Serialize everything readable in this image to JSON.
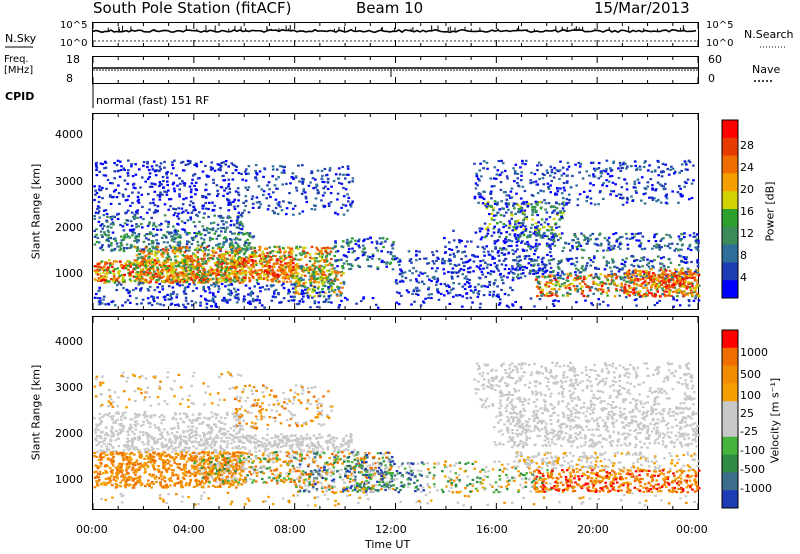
{
  "header": {
    "station": "South Pole Station (fitACF)",
    "beam": "Beam 10",
    "date": "15/Mar/2013"
  },
  "top_panels": {
    "nsky_label": "N.Sky",
    "nsearch_label": "N.Search",
    "nsky_ticks": [
      "10^5",
      "10^0"
    ],
    "freq_label": "Freq.",
    "freq_unit": "[MHz]",
    "freq_ticks": [
      "18",
      "8"
    ],
    "nave_label": "Nave",
    "nave_ticks": [
      "60",
      "0"
    ],
    "cpid_label": "CPID",
    "cpid_value": "normal (fast) 151 RF"
  },
  "chart_data": [
    {
      "type": "heatmap",
      "name": "power",
      "ylabel": "Slant Range [km]",
      "yticks": [
        "4000",
        "3000",
        "2000",
        "1000"
      ],
      "ylim": [
        200,
        4500
      ],
      "colorbar_label": "Power [dB]",
      "colorbar_ticks": [
        "28",
        "24",
        "20",
        "16",
        "12",
        "8",
        "4"
      ],
      "colorbar_colors": [
        "#0000ff",
        "#1e3cb4",
        "#2e6f9a",
        "#3c8c5a",
        "#2ea02e",
        "#d2d200",
        "#f5a000",
        "#f06e00",
        "#e63c00",
        "#ff0000"
      ]
    },
    {
      "type": "heatmap",
      "name": "velocity",
      "ylabel": "Slant Range [km]",
      "yticks": [
        "4000",
        "3000",
        "2000",
        "1000"
      ],
      "ylim": [
        200,
        4500
      ],
      "colorbar_label": "Velocity [m s⁻¹]",
      "colorbar_ticks": [
        "1000",
        "500",
        "100",
        "25",
        "-25",
        "-100",
        "-500",
        "-1000"
      ],
      "colorbar_colors": [
        "#1e3cb4",
        "#3c6e8c",
        "#2e8c46",
        "#46b43c",
        "#c8c8c8",
        "#c8c8c8",
        "#f5a000",
        "#f08c00",
        "#f06e00",
        "#ff0000"
      ]
    }
  ],
  "xaxis": {
    "ticks": [
      "00:00",
      "04:00",
      "08:00",
      "12:00",
      "16:00",
      "20:00",
      "00:00"
    ],
    "label": "Time UT"
  }
}
